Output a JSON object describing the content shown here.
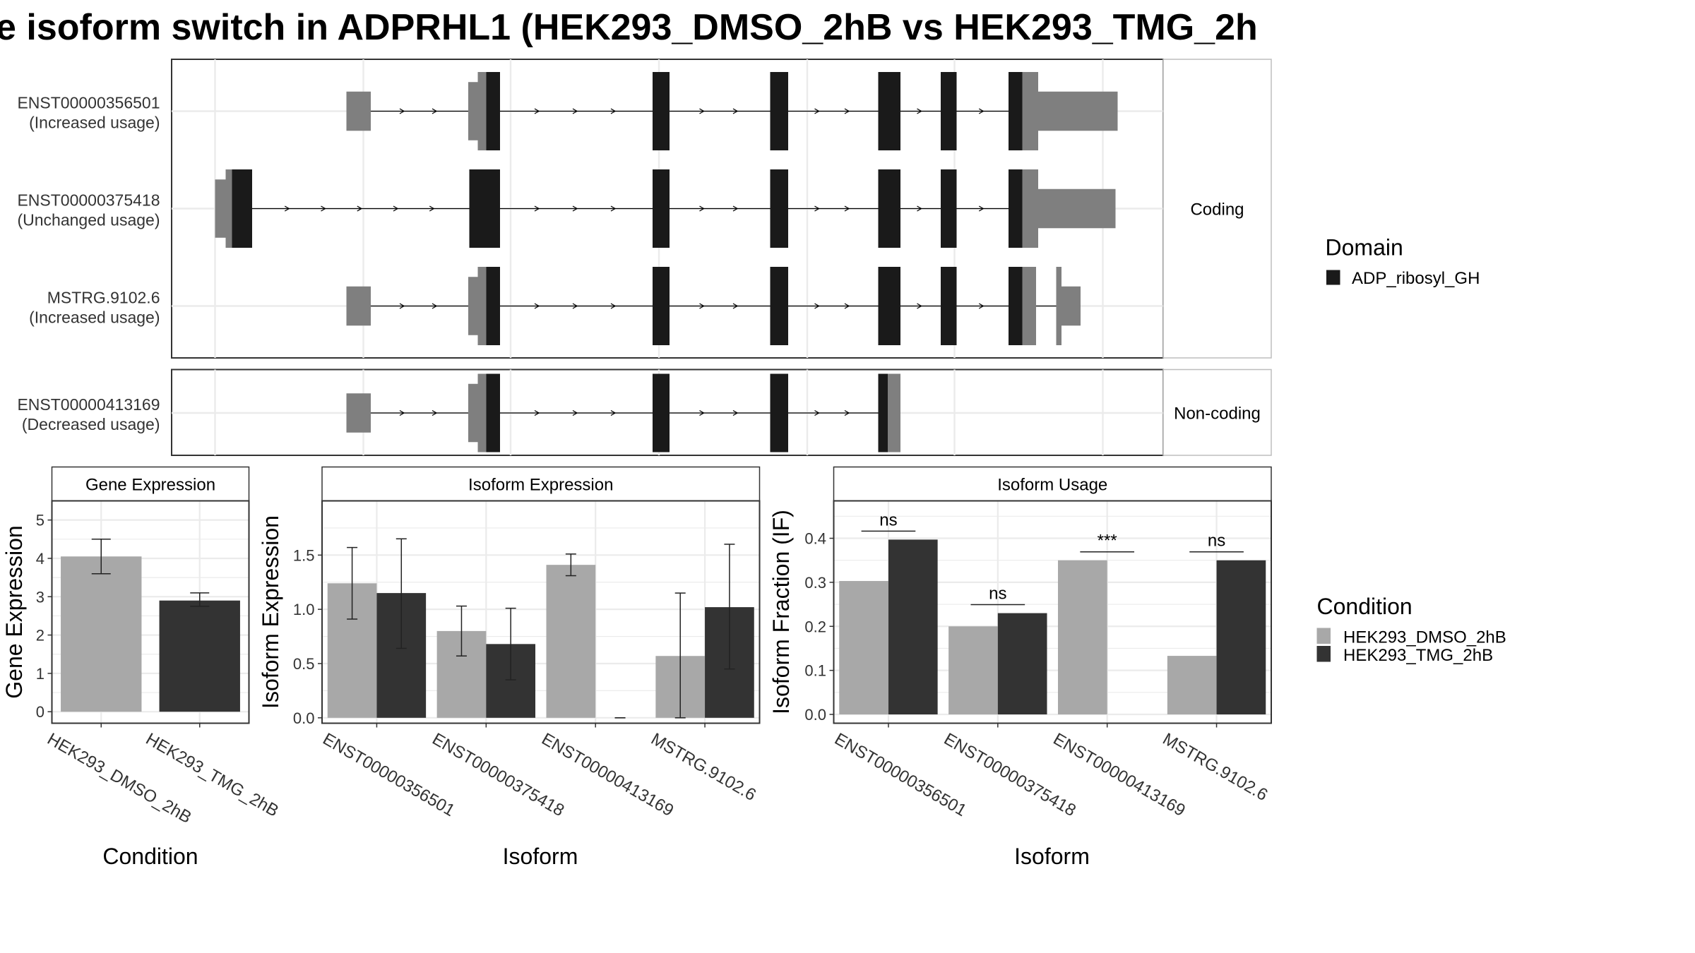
{
  "title": "e isoform switch in ADPRHL1 (HEK293_DMSO_2hB vs HEK293_TMG_2h",
  "colors": {
    "domain": "#1a1a1a",
    "coding_exon": "#7f7f7f",
    "dmso": "#a8a8a8",
    "tmg": "#333333",
    "grid": "#ebebeb",
    "strip": "#f2f2f2",
    "frame": "#333333"
  },
  "structure": {
    "panels": [
      {
        "label": "Coding",
        "isoforms": [
          {
            "id": "ENST00000356501",
            "usage": "(Increased usage)",
            "intron": [
              350,
              1055
            ],
            "exons": [
              {
                "start": 327,
                "end": 350,
                "kind": "utr"
              },
              {
                "start": 442,
                "end": 451,
                "kind": "utr_thin"
              },
              {
                "start": 451,
                "end": 459,
                "kind": "cds"
              },
              {
                "start": 459,
                "end": 472,
                "kind": "domain"
              },
              {
                "start": 616,
                "end": 632,
                "kind": "domain"
              },
              {
                "start": 727,
                "end": 744,
                "kind": "domain"
              },
              {
                "start": 829,
                "end": 850,
                "kind": "domain"
              },
              {
                "start": 888,
                "end": 903,
                "kind": "domain"
              },
              {
                "start": 952,
                "end": 965,
                "kind": "domain"
              },
              {
                "start": 965,
                "end": 980,
                "kind": "cds"
              },
              {
                "start": 980,
                "end": 1055,
                "kind": "utr"
              }
            ]
          },
          {
            "id": "ENST00000375418",
            "usage": "(Unchanged usage)",
            "intron": [
              203,
              1053
            ],
            "exons": [
              {
                "start": 203,
                "end": 213,
                "kind": "utr_thin"
              },
              {
                "start": 213,
                "end": 219,
                "kind": "cds"
              },
              {
                "start": 219,
                "end": 238,
                "kind": "domain"
              },
              {
                "start": 443,
                "end": 472,
                "kind": "domain"
              },
              {
                "start": 616,
                "end": 632,
                "kind": "domain"
              },
              {
                "start": 727,
                "end": 744,
                "kind": "domain"
              },
              {
                "start": 829,
                "end": 850,
                "kind": "domain"
              },
              {
                "start": 888,
                "end": 903,
                "kind": "domain"
              },
              {
                "start": 952,
                "end": 965,
                "kind": "domain"
              },
              {
                "start": 965,
                "end": 980,
                "kind": "cds"
              },
              {
                "start": 980,
                "end": 1053,
                "kind": "utr"
              }
            ]
          },
          {
            "id": "MSTRG.9102.6",
            "usage": "(Increased usage)",
            "intron": [
              350,
              1020
            ],
            "exons": [
              {
                "start": 327,
                "end": 350,
                "kind": "utr"
              },
              {
                "start": 442,
                "end": 451,
                "kind": "utr_thin"
              },
              {
                "start": 451,
                "end": 459,
                "kind": "cds"
              },
              {
                "start": 459,
                "end": 472,
                "kind": "domain"
              },
              {
                "start": 616,
                "end": 632,
                "kind": "domain"
              },
              {
                "start": 727,
                "end": 744,
                "kind": "domain"
              },
              {
                "start": 829,
                "end": 850,
                "kind": "domain"
              },
              {
                "start": 888,
                "end": 903,
                "kind": "domain"
              },
              {
                "start": 952,
                "end": 965,
                "kind": "domain"
              },
              {
                "start": 965,
                "end": 978,
                "kind": "cds"
              },
              {
                "start": 997,
                "end": 1002,
                "kind": "cds"
              },
              {
                "start": 1002,
                "end": 1020,
                "kind": "utr"
              }
            ]
          }
        ]
      },
      {
        "label": "Non-coding",
        "isoforms": [
          {
            "id": "ENST00000413169",
            "usage": "(Decreased usage)",
            "intron": [
              350,
              838
            ],
            "exons": [
              {
                "start": 327,
                "end": 350,
                "kind": "utr"
              },
              {
                "start": 442,
                "end": 451,
                "kind": "utr_thin"
              },
              {
                "start": 451,
                "end": 459,
                "kind": "cds"
              },
              {
                "start": 459,
                "end": 472,
                "kind": "domain"
              },
              {
                "start": 616,
                "end": 632,
                "kind": "domain"
              },
              {
                "start": 727,
                "end": 744,
                "kind": "domain"
              },
              {
                "start": 829,
                "end": 838,
                "kind": "domain"
              },
              {
                "start": 838,
                "end": 850,
                "kind": "cds"
              }
            ]
          }
        ]
      }
    ]
  },
  "legends": {
    "domain": {
      "title": "Domain",
      "items": [
        {
          "label": "ADP_ribosyl_GH",
          "color": "#1a1a1a"
        }
      ]
    },
    "condition": {
      "title": "Condition",
      "items": [
        {
          "label": "HEK293_DMSO_2hB",
          "color": "#a8a8a8"
        },
        {
          "label": "HEK293_TMG_2hB",
          "color": "#333333"
        }
      ]
    }
  },
  "chart_data": [
    {
      "type": "bar",
      "title": "Gene Expression",
      "xlabel": "Condition",
      "ylabel": "Gene Expression",
      "ylim": [
        -0.3,
        5.5
      ],
      "yticks": [
        0,
        1,
        2,
        3,
        4,
        5
      ],
      "categories": [
        "HEK293_DMSO_2hB",
        "HEK293_TMG_2hB"
      ],
      "values": [
        4.05,
        2.9
      ],
      "errors": [
        [
          3.6,
          4.5
        ],
        [
          2.75,
          3.1
        ]
      ],
      "bar_colors": [
        "#a8a8a8",
        "#333333"
      ]
    },
    {
      "type": "bar",
      "title": "Isoform Expression",
      "xlabel": "Isoform",
      "ylabel": "Isoform Expression",
      "ylim": [
        -0.05,
        2.0
      ],
      "yticks": [
        0.0,
        0.5,
        1.0,
        1.5
      ],
      "categories": [
        "ENST00000356501",
        "ENST00000375418",
        "ENST00000413169",
        "MSTRG.9102.6"
      ],
      "series": [
        {
          "name": "HEK293_DMSO_2hB",
          "values": [
            1.24,
            0.8,
            1.41,
            0.57
          ],
          "errors": [
            [
              0.91,
              1.57
            ],
            [
              0.57,
              1.03
            ],
            [
              1.31,
              1.51
            ],
            [
              0.0,
              1.15
            ]
          ]
        },
        {
          "name": "HEK293_TMG_2hB",
          "values": [
            1.15,
            0.68,
            0.0,
            1.02
          ],
          "errors": [
            [
              0.64,
              1.65
            ],
            [
              0.35,
              1.01
            ],
            [
              0.0,
              0.0
            ],
            [
              0.45,
              1.6
            ]
          ]
        }
      ]
    },
    {
      "type": "bar",
      "title": "Isoform Usage",
      "xlabel": "Isoform",
      "ylabel": "Isoform Fraction (IF)",
      "ylim": [
        -0.02,
        0.485
      ],
      "yticks": [
        0.0,
        0.1,
        0.2,
        0.3,
        0.4
      ],
      "categories": [
        "ENST00000356501",
        "ENST00000375418",
        "ENST00000413169",
        "MSTRG.9102.6"
      ],
      "series": [
        {
          "name": "HEK293_DMSO_2hB",
          "values": [
            0.303,
            0.2,
            0.35,
            0.133
          ]
        },
        {
          "name": "HEK293_TMG_2hB",
          "values": [
            0.397,
            0.23,
            0.0,
            0.35
          ]
        }
      ],
      "significance": [
        "ns",
        "ns",
        "***",
        "ns"
      ]
    }
  ]
}
